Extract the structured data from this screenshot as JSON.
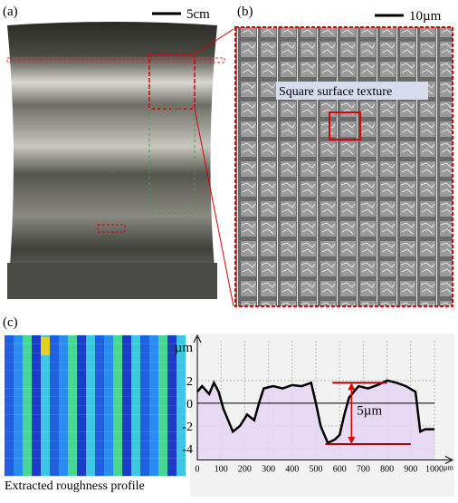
{
  "panels": {
    "a": "(a)",
    "b": "(b)",
    "c": "(c)"
  },
  "scale_bars": {
    "a": "5cm",
    "b": "10µm"
  },
  "texture_label": "Square surface texture",
  "heatmap_caption": "Extracted roughness profile",
  "chart_data": {
    "type": "area",
    "y_label": "µm",
    "x_unit": "µm",
    "x": [
      0,
      20,
      50,
      70,
      90,
      110,
      130,
      150,
      180,
      210,
      240,
      260,
      280,
      320,
      360,
      400,
      440,
      480,
      500,
      520,
      550,
      580,
      600,
      620,
      640,
      680,
      720,
      760,
      800,
      840,
      880,
      920,
      940,
      960,
      1000
    ],
    "y": [
      1,
      1.5,
      0.8,
      1.8,
      1,
      -0.5,
      -1.5,
      -2.5,
      -2,
      -1,
      -1.5,
      0,
      1.3,
      1.5,
      1.3,
      1.6,
      1.5,
      1.8,
      0,
      -2,
      -3.5,
      -3.2,
      -2.8,
      -1,
      0.5,
      1.5,
      1.3,
      1.6,
      2,
      1.8,
      1.5,
      1,
      -2.5,
      -2.3,
      -2.3
    ],
    "color": "#000000",
    "fill": "#e6d6f5",
    "xlim": [
      0,
      1000
    ],
    "ylim": [
      -5,
      5.5
    ],
    "xticks": [
      0,
      100,
      200,
      300,
      400,
      500,
      600,
      700,
      800,
      900,
      1000
    ],
    "yticks": [
      -4,
      -2,
      0,
      2
    ],
    "grid": true,
    "annotation": "5µm"
  }
}
